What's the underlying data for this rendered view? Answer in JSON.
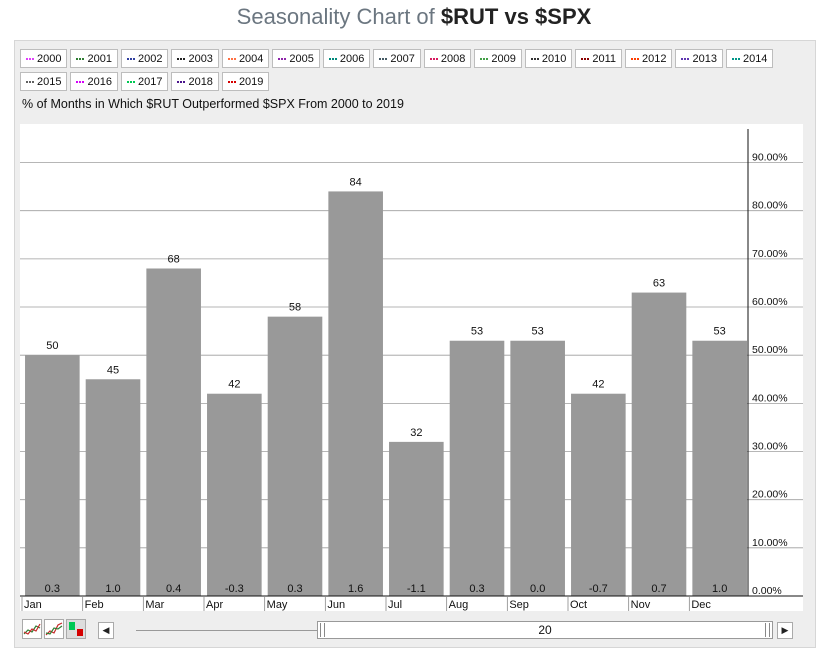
{
  "title": {
    "prefix": "Seasonality Chart of",
    "symbols": "$RUT vs $SPX"
  },
  "legend": [
    {
      "label": "2000",
      "color": "#e040fb"
    },
    {
      "label": "2001",
      "color": "#2e7d32"
    },
    {
      "label": "2002",
      "color": "#303f9f"
    },
    {
      "label": "2003",
      "color": "#222222"
    },
    {
      "label": "2004",
      "color": "#ff7043"
    },
    {
      "label": "2005",
      "color": "#8e24aa"
    },
    {
      "label": "2006",
      "color": "#00897b"
    },
    {
      "label": "2007",
      "color": "#455a64"
    },
    {
      "label": "2008",
      "color": "#d81b60"
    },
    {
      "label": "2009",
      "color": "#43a047"
    },
    {
      "label": "2010",
      "color": "#333333"
    },
    {
      "label": "2011",
      "color": "#8b0000"
    },
    {
      "label": "2012",
      "color": "#ff3d00"
    },
    {
      "label": "2013",
      "color": "#5e35b1"
    },
    {
      "label": "2014",
      "color": "#009688"
    },
    {
      "label": "2015",
      "color": "#616161"
    },
    {
      "label": "2016",
      "color": "#d500f9"
    },
    {
      "label": "2017",
      "color": "#00c853"
    },
    {
      "label": "2018",
      "color": "#4a148c"
    },
    {
      "label": "2019",
      "color": "#d50000"
    }
  ],
  "chart_data": {
    "type": "bar",
    "title": "% of Months in Which $RUT Outperformed $SPX From 2000 to 2019",
    "categories": [
      "Jan",
      "Feb",
      "Mar",
      "Apr",
      "May",
      "Jun",
      "Jul",
      "Aug",
      "Sep",
      "Oct",
      "Nov",
      "Dec"
    ],
    "values": [
      50,
      45,
      68,
      42,
      58,
      84,
      32,
      53,
      53,
      42,
      63,
      53
    ],
    "bottom_labels": [
      "0.3",
      "1.0",
      "0.4",
      "-0.3",
      "0.3",
      "1.6",
      "-1.1",
      "0.3",
      "0.0",
      "-0.7",
      "0.7",
      "1.0"
    ],
    "yticks": [
      0,
      10,
      20,
      30,
      40,
      50,
      60,
      70,
      80,
      90
    ],
    "ytick_labels": [
      "0.00%",
      "10.00%",
      "20.00%",
      "30.00%",
      "40.00%",
      "50.00%",
      "60.00%",
      "70.00%",
      "80.00%",
      "90.00%"
    ],
    "ylim": [
      0,
      98
    ],
    "y_axis_position": "right",
    "grid": true,
    "bar_color": "#999999"
  },
  "navigator": {
    "value": "20"
  }
}
